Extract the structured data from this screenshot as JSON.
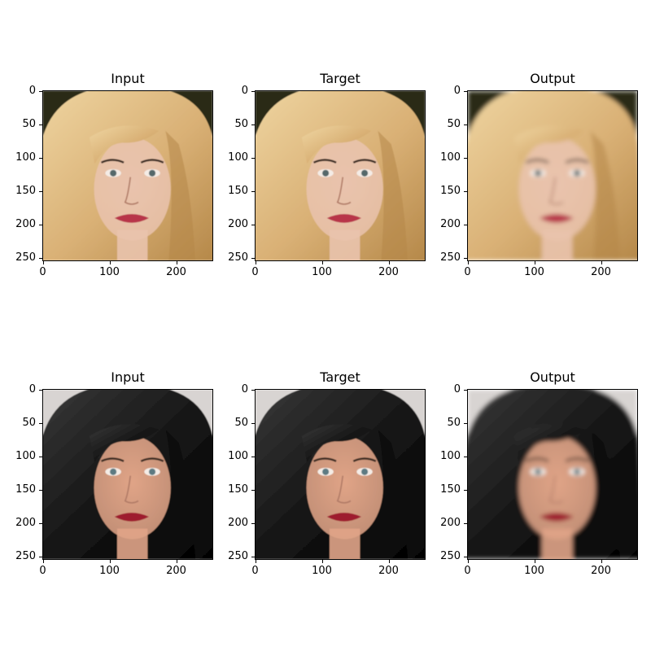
{
  "figure": {
    "rows": [
      {
        "subject": "blonde",
        "panels": [
          {
            "title": "Input",
            "style": "sharp"
          },
          {
            "title": "Target",
            "style": "sharp"
          },
          {
            "title": "Output",
            "style": "smooth"
          }
        ]
      },
      {
        "subject": "brunette",
        "panels": [
          {
            "title": "Input",
            "style": "sharp"
          },
          {
            "title": "Target",
            "style": "sharp"
          },
          {
            "title": "Output",
            "style": "smooth"
          }
        ]
      }
    ],
    "x_ticks": [
      "0",
      "100",
      "200"
    ],
    "y_ticks": [
      "0",
      "50",
      "100",
      "150",
      "200",
      "250"
    ],
    "x_tick_values": [
      0,
      100,
      200
    ],
    "y_tick_values": [
      0,
      50,
      100,
      150,
      200,
      250
    ],
    "image_extent": [
      0,
      256
    ],
    "palettes": {
      "blonde": {
        "bg": "#2b2a18",
        "hair": "#d9b075",
        "hair_light": "#efd6a2",
        "hair_dark": "#b48748",
        "skin": "#e9c3ad",
        "lips": "#b8344a",
        "eyes": "#55676a"
      },
      "brunette": {
        "bg": "#d8d4d2",
        "hair": "#141414",
        "hair_light": "#3a3a3a",
        "hair_dark": "#050505",
        "skin": "#e0a487",
        "lips": "#9e1f2d",
        "eyes": "#5d7a82"
      }
    }
  }
}
